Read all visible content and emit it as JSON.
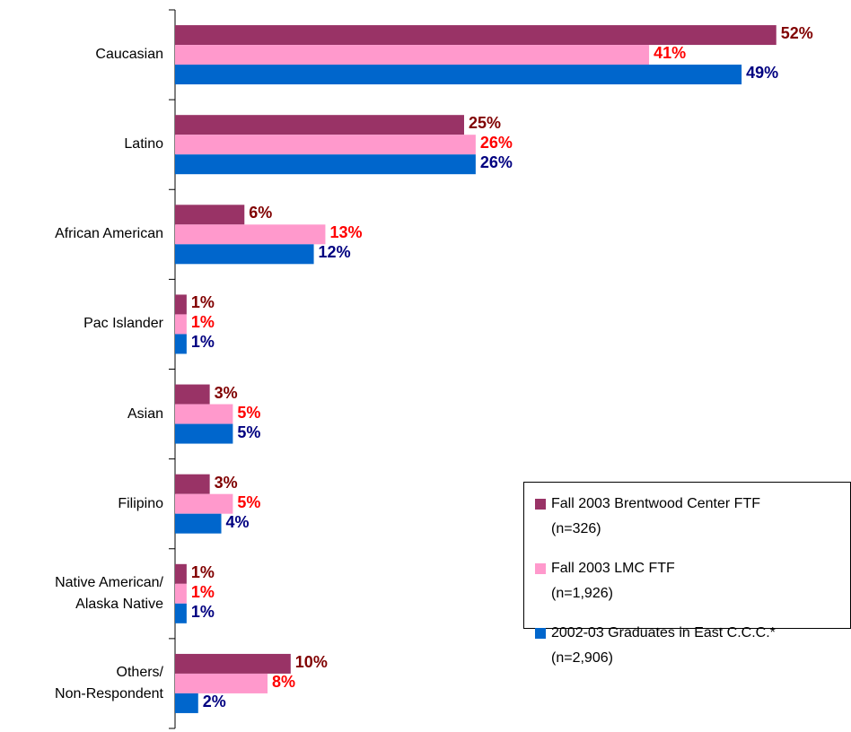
{
  "chart_data": {
    "type": "bar",
    "orientation": "horizontal",
    "categories": [
      "Caucasian",
      "Latino",
      "African American",
      "Pac Islander",
      "Asian",
      "Filipino",
      "Native American/\nAlaska Native",
      "Others/\nNon-Respondent"
    ],
    "series": [
      {
        "name": "Fall 2003 Brentwood Center FTF\n(n=326)",
        "color": "#993366",
        "label_color": "#800000",
        "values": [
          52,
          25,
          6,
          1,
          3,
          3,
          1,
          10
        ],
        "value_labels": [
          "52%",
          "25%",
          "6%",
          "1%",
          "3%",
          "3%",
          "1%",
          "10%"
        ]
      },
      {
        "name": "Fall 2003 LMC FTF\n(n=1,926)",
        "color": "#ff99cc",
        "label_color": "#ff0000",
        "values": [
          41,
          26,
          13,
          1,
          5,
          5,
          1,
          8
        ],
        "value_labels": [
          "41%",
          "26%",
          "13%",
          "1%",
          "5%",
          "5%",
          "1%",
          "8%"
        ]
      },
      {
        "name": "2002-03 Graduates in East C.C.C.*\n(n=2,906)",
        "color": "#0066cc",
        "label_color": "#000080",
        "values": [
          49,
          26,
          12,
          1,
          5,
          4,
          1,
          2
        ],
        "value_labels": [
          "49%",
          "26%",
          "12%",
          "1%",
          "5%",
          "4%",
          "1%",
          "2%"
        ]
      }
    ],
    "legend": "bottom-right"
  }
}
